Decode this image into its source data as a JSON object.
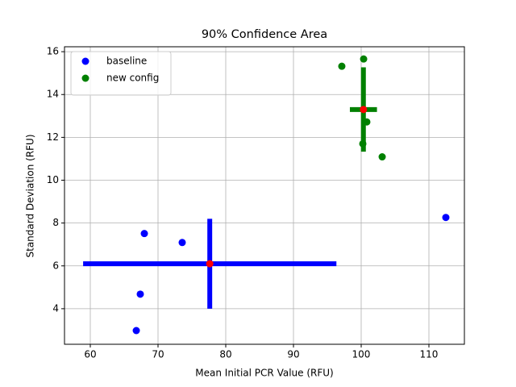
{
  "chart_data": {
    "type": "scatter",
    "title": "90% Confidence Area",
    "x_label": "Mean Initial PCR Value (RFU)",
    "y_label": "Standard Deviation (RFU)",
    "xlim": [
      56.19,
      115.24
    ],
    "xticks": [
      60,
      70,
      80,
      90,
      100,
      110
    ],
    "ylim": [
      2.34,
      16.23
    ],
    "yticks": [
      4,
      6,
      8,
      10,
      12,
      14,
      16
    ],
    "grid": true,
    "legend": "upper left",
    "mean_color": "red",
    "series": [
      {
        "name": "baseline",
        "color": "blue",
        "x": [
          67.98,
          73.57,
          67.38,
          66.79,
          112.5
        ],
        "y": [
          7.51,
          7.09,
          4.68,
          2.98,
          8.26
        ],
        "mean": {
          "x": 77.64,
          "y": 6.1,
          "xerr": 18.7,
          "yerr": 2.1
        }
      },
      {
        "name": "new config",
        "color": "green",
        "x": [
          97.14,
          100.36,
          100.83,
          100.24,
          103.1
        ],
        "y": [
          15.32,
          15.66,
          12.72,
          11.7,
          11.09
        ],
        "mean": {
          "x": 100.33,
          "y": 13.3,
          "xerr": 2.0,
          "yerr": 1.97
        }
      }
    ]
  }
}
